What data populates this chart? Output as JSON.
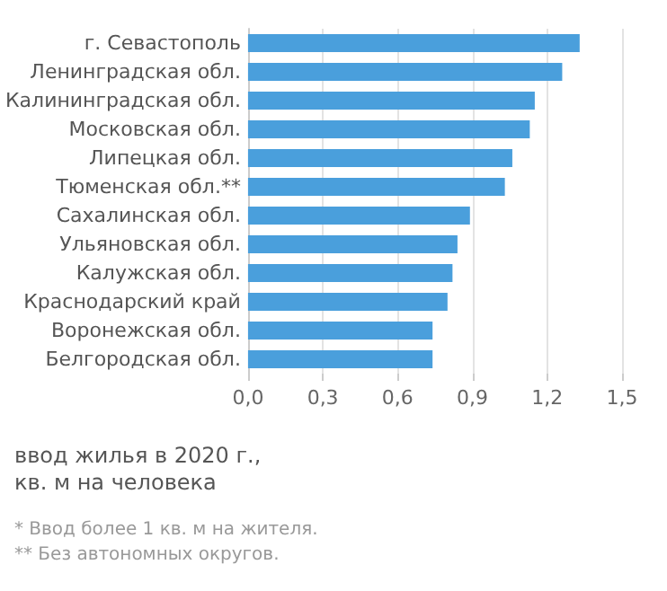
{
  "chart_data": {
    "type": "bar",
    "orientation": "horizontal",
    "categories": [
      "г. Севастополь",
      "Ленинградская обл.",
      "Калининградская обл.",
      "Московская обл.",
      "Липецкая обл.",
      "Тюменская обл.**",
      "Сахалинская обл.",
      "Ульяновская обл.",
      "Калужская обл.",
      "Краснодарский край",
      "Воронежская обл.",
      "Белгородская обл."
    ],
    "values": [
      1.33,
      1.26,
      1.15,
      1.13,
      1.06,
      1.03,
      0.89,
      0.84,
      0.82,
      0.8,
      0.74,
      0.74
    ],
    "color": "#4a9fdc",
    "xlim": [
      0,
      1.5
    ],
    "xticks": [
      {
        "value": 0,
        "label": "0,0"
      },
      {
        "value": 0.3,
        "label": "0,3"
      },
      {
        "value": 0.6,
        "label": "0,6"
      },
      {
        "value": 0.9,
        "label": "0,9"
      },
      {
        "value": 1.2,
        "label": "1,2"
      },
      {
        "value": 1.5,
        "label": "1,5"
      }
    ],
    "xlabel": "ввод жилья в 2020 г.,\nкв. м на человека",
    "annotations": [
      "* Ввод более 1 кв. м на жителя.",
      "** Без автономных округов."
    ],
    "grid": "x"
  }
}
